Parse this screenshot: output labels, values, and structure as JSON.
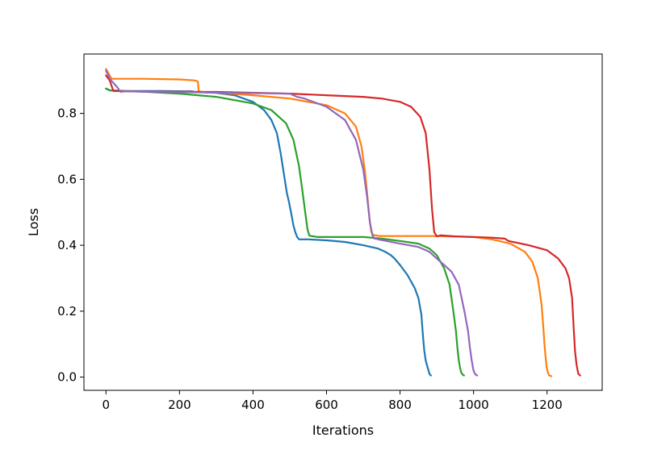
{
  "chart_data": {
    "type": "line",
    "title": "",
    "xlabel": "Iterations",
    "ylabel": "Loss",
    "xlim": [
      -60,
      1350
    ],
    "ylim": [
      -0.04,
      0.98
    ],
    "x_ticks": [
      0,
      200,
      400,
      600,
      800,
      1000,
      1200
    ],
    "y_ticks": [
      0.0,
      0.2,
      0.4,
      0.6,
      0.8
    ],
    "x_tick_labels": [
      "0",
      "200",
      "400",
      "600",
      "800",
      "1000",
      "1200"
    ],
    "y_tick_labels": [
      "0.0",
      "0.2",
      "0.4",
      "0.6",
      "0.8"
    ],
    "grid": false,
    "legend": "none",
    "series": [
      {
        "color": "#1f77b4",
        "x": [
          0,
          10,
          50,
          150,
          220,
          235,
          240,
          250,
          300,
          350,
          400,
          430,
          450,
          465,
          475,
          485,
          492,
          498,
          505,
          510,
          515,
          520,
          525,
          535,
          550,
          600,
          650,
          700,
          740,
          760,
          775,
          785,
          800,
          820,
          840,
          850,
          858,
          862,
          866,
          870,
          875,
          880,
          884
        ],
        "y": [
          0.875,
          0.87,
          0.868,
          0.868,
          0.867,
          0.867,
          0.865,
          0.865,
          0.862,
          0.855,
          0.835,
          0.81,
          0.78,
          0.74,
          0.68,
          0.61,
          0.56,
          0.53,
          0.49,
          0.46,
          0.44,
          0.425,
          0.418,
          0.418,
          0.418,
          0.415,
          0.41,
          0.4,
          0.39,
          0.38,
          0.37,
          0.36,
          0.34,
          0.31,
          0.27,
          0.24,
          0.19,
          0.13,
          0.08,
          0.05,
          0.03,
          0.01,
          0.005
        ]
      },
      {
        "color": "#ff7f0e",
        "x": [
          0,
          5,
          15,
          50,
          100,
          200,
          240,
          250,
          252,
          260,
          300,
          400,
          500,
          600,
          650,
          680,
          695,
          705,
          712,
          718,
          722,
          728,
          735,
          745,
          800,
          900,
          1000,
          1050,
          1100,
          1140,
          1160,
          1175,
          1185,
          1190,
          1193,
          1196,
          1199,
          1202,
          1205,
          1208,
          1212
        ],
        "y": [
          0.935,
          0.925,
          0.905,
          0.905,
          0.905,
          0.903,
          0.9,
          0.897,
          0.868,
          0.865,
          0.863,
          0.855,
          0.845,
          0.825,
          0.8,
          0.76,
          0.7,
          0.62,
          0.54,
          0.47,
          0.44,
          0.43,
          0.43,
          0.428,
          0.428,
          0.428,
          0.425,
          0.418,
          0.405,
          0.38,
          0.35,
          0.3,
          0.22,
          0.15,
          0.1,
          0.06,
          0.03,
          0.015,
          0.006,
          0.004,
          0.003
        ]
      },
      {
        "color": "#2ca02c",
        "x": [
          0,
          10,
          50,
          100,
          200,
          300,
          400,
          450,
          490,
          510,
          525,
          535,
          542,
          548,
          553,
          558,
          565,
          575,
          600,
          700,
          750,
          800,
          850,
          880,
          900,
          920,
          935,
          945,
          952,
          956,
          960,
          963,
          966,
          970,
          974
        ],
        "y": [
          0.875,
          0.87,
          0.868,
          0.866,
          0.86,
          0.85,
          0.83,
          0.81,
          0.77,
          0.72,
          0.64,
          0.56,
          0.5,
          0.45,
          0.43,
          0.428,
          0.427,
          0.425,
          0.425,
          0.425,
          0.42,
          0.413,
          0.405,
          0.39,
          0.37,
          0.33,
          0.28,
          0.2,
          0.14,
          0.09,
          0.05,
          0.03,
          0.015,
          0.008,
          0.005
        ]
      },
      {
        "color": "#d62728",
        "x": [
          0,
          10,
          20,
          50,
          100,
          300,
          500,
          600,
          700,
          750,
          800,
          830,
          855,
          870,
          880,
          887,
          893,
          900,
          910,
          950,
          1000,
          1050,
          1085,
          1095,
          1150,
          1200,
          1230,
          1250,
          1260,
          1268,
          1273,
          1276,
          1280,
          1285,
          1290
        ],
        "y": [
          0.915,
          0.9,
          0.868,
          0.867,
          0.866,
          0.865,
          0.86,
          0.855,
          0.85,
          0.845,
          0.835,
          0.82,
          0.79,
          0.74,
          0.63,
          0.51,
          0.44,
          0.427,
          0.43,
          0.427,
          0.425,
          0.423,
          0.42,
          0.413,
          0.4,
          0.385,
          0.36,
          0.33,
          0.3,
          0.24,
          0.14,
          0.08,
          0.04,
          0.01,
          0.005
        ]
      },
      {
        "color": "#9467bd",
        "x": [
          0,
          10,
          30,
          40,
          50,
          100,
          300,
          500,
          520,
          540,
          600,
          650,
          680,
          700,
          710,
          718,
          725,
          730,
          735,
          740,
          800,
          850,
          880,
          900,
          940,
          960,
          975,
          985,
          990,
          995,
          1000,
          1005,
          1010
        ],
        "y": [
          0.93,
          0.905,
          0.88,
          0.865,
          0.867,
          0.866,
          0.863,
          0.86,
          0.85,
          0.845,
          0.82,
          0.78,
          0.72,
          0.63,
          0.55,
          0.47,
          0.43,
          0.42,
          0.42,
          0.418,
          0.405,
          0.395,
          0.38,
          0.36,
          0.32,
          0.28,
          0.2,
          0.14,
          0.09,
          0.05,
          0.02,
          0.008,
          0.005
        ]
      }
    ]
  }
}
